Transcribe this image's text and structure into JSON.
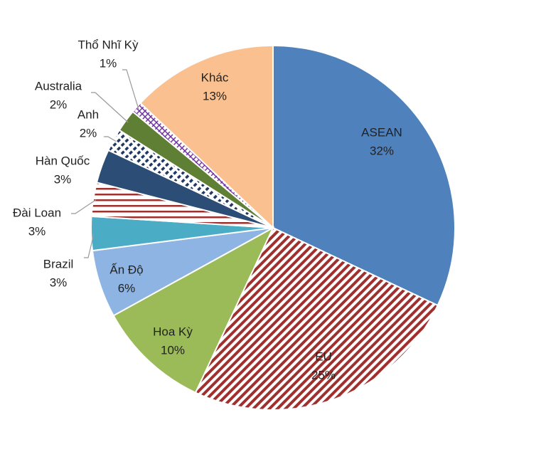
{
  "chart_data": {
    "type": "pie",
    "categories": [
      "ASEAN",
      "EU",
      "Hoa Kỳ",
      "Ấn Độ",
      "Brazil",
      "Đài Loan",
      "Hàn Quốc",
      "Anh",
      "Australia",
      "Thổ Nhĩ Kỳ",
      "Khác"
    ],
    "values": [
      32,
      25,
      10,
      6,
      3,
      3,
      3,
      2,
      2,
      1,
      13
    ],
    "value_labels": [
      "32%",
      "25%",
      "10%",
      "6%",
      "3%",
      "3%",
      "3%",
      "2%",
      "2%",
      "1%",
      "13%"
    ],
    "colors": [
      "#4f81bd",
      "#a0302e",
      "#9bbb59",
      "#8eb4e3",
      "#4bacc6",
      "#a0302e",
      "#2c4d75",
      "#1f3864",
      "#5e7f34",
      "#7030a0",
      "#fac090"
    ],
    "patterns": [
      "solid",
      "diagonal",
      "solid",
      "solid",
      "solid",
      "horizontal",
      "solid",
      "dash",
      "solid",
      "cross",
      "solid"
    ]
  }
}
